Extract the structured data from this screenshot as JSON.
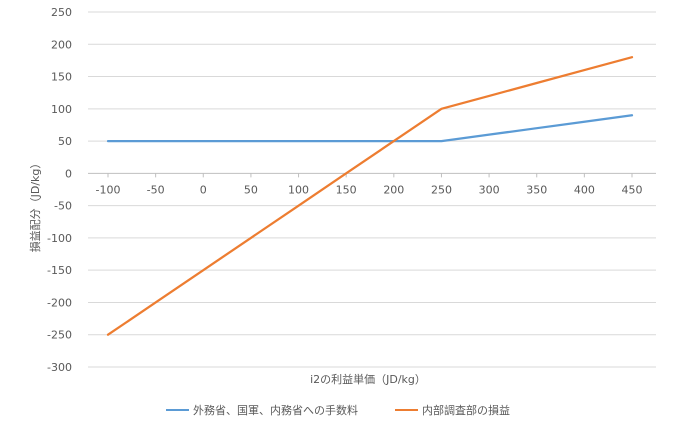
{
  "chart_data": {
    "type": "line",
    "title": "",
    "xlabel": "i2の利益単価（JD/kg）",
    "ylabel": "損益配分（JD/kg）",
    "x": [
      -100,
      -50,
      0,
      50,
      100,
      150,
      200,
      250,
      300,
      350,
      400,
      450
    ],
    "xlim": [
      -100,
      450
    ],
    "ylim": [
      -300,
      250
    ],
    "ytick_step": 50,
    "grid": true,
    "legend_position": "bottom",
    "series": [
      {
        "name": "外務省、国軍、内務省への手数料",
        "color": "#5B9BD5",
        "values": [
          50,
          50,
          50,
          50,
          50,
          50,
          50,
          50,
          60,
          70,
          80,
          90
        ]
      },
      {
        "name": "内部調査部の損益",
        "color": "#ED7D31",
        "values": [
          -250,
          -200,
          -150,
          -100,
          -50,
          0,
          50,
          100,
          120,
          140,
          160,
          180
        ]
      }
    ]
  }
}
